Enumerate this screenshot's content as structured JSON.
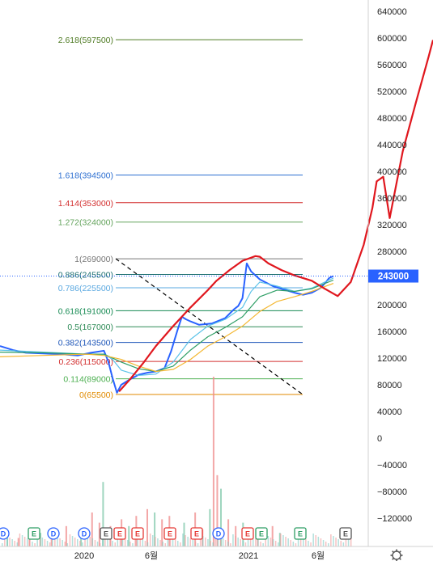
{
  "chart_data": {
    "type": "line",
    "y_axis": {
      "ticks": [
        640000,
        600000,
        560000,
        520000,
        480000,
        440000,
        400000,
        360000,
        320000,
        280000,
        240000,
        200000,
        160000,
        120000,
        80000,
        40000,
        0,
        -40000,
        -80000,
        -120000
      ],
      "labels": [
        "640000",
        "600000",
        "560000",
        "520000",
        "480000",
        "440000",
        "400000",
        "360000",
        "320000",
        "280000",
        "240000",
        "200000",
        "160000",
        "120000",
        "80000",
        "40000",
        "0",
        "−40000",
        "−80000",
        "−120000"
      ],
      "range": [
        -155000,
        685000
      ]
    },
    "x_axis": {
      "labels": [
        "2020",
        "6월",
        "2021",
        "6월"
      ]
    },
    "current_price": {
      "value": 243000,
      "label": "243000",
      "color": "#2962ff"
    },
    "fibonacci": [
      {
        "ratio": "2.618",
        "value": 597500,
        "label": "2.618(597500)",
        "color": "#4f7b24"
      },
      {
        "ratio": "1.618",
        "value": 394500,
        "label": "1.618(394500)",
        "color": "#2d6fd1"
      },
      {
        "ratio": "1.414",
        "value": 353000,
        "label": "1.414(353000)",
        "color": "#d32f2f"
      },
      {
        "ratio": "1.272",
        "value": 324000,
        "label": "1.272(324000)",
        "color": "#63a35c"
      },
      {
        "ratio": "1",
        "value": 269000,
        "label": "1(269000)",
        "color": "#777777"
      },
      {
        "ratio": "0.886",
        "value": 245500,
        "label": "0.886(245500)",
        "color": "#1b6f6f"
      },
      {
        "ratio": "0.786",
        "value": 225500,
        "label": "0.786(225500)",
        "color": "#5aa8e0"
      },
      {
        "ratio": "0.618",
        "value": 191000,
        "label": "0.618(191000)",
        "color": "#158a52"
      },
      {
        "ratio": "0.5",
        "value": 167000,
        "label": "0.5(167000)",
        "color": "#2e8b57"
      },
      {
        "ratio": "0.382",
        "value": 143500,
        "label": "0.382(143500)",
        "color": "#1e56b8"
      },
      {
        "ratio": "0.236",
        "value": 115000,
        "label": "0.236(115000)",
        "color": "#d32f2f"
      },
      {
        "ratio": "0.114",
        "value": 89000,
        "label": "0.114(89000)",
        "color": "#4caf50"
      },
      {
        "ratio": "0",
        "value": 65500,
        "label": "0(65500)",
        "color": "#e08a00"
      }
    ],
    "series": [
      {
        "color": "#2962ff",
        "x": [
          0,
          0.03,
          0.06,
          0.1,
          0.14,
          0.18,
          0.21,
          0.24,
          0.25,
          0.26,
          0.27,
          0.28,
          0.3,
          0.32,
          0.34,
          0.36,
          0.38,
          0.395,
          0.41,
          0.42,
          0.43,
          0.44,
          0.46,
          0.49,
          0.52,
          0.54,
          0.55,
          0.56,
          0.57,
          0.58,
          0.6,
          0.63,
          0.66,
          0.68,
          0.7,
          0.72,
          0.74,
          0.75,
          0.76,
          0.77
        ],
        "values": [
          138000,
          132000,
          128000,
          127000,
          126000,
          124000,
          128000,
          131000,
          115000,
          90000,
          68000,
          80000,
          88000,
          95000,
          98000,
          100000,
          105000,
          130000,
          162000,
          182000,
          178000,
          175000,
          170000,
          172000,
          180000,
          193000,
          198000,
          210000,
          262000,
          250000,
          238000,
          228000,
          222000,
          218000,
          215000,
          218000,
          225000,
          232000,
          240000,
          243000
        ]
      },
      {
        "color": "#5bc2e8",
        "x": [
          0,
          0.1,
          0.2,
          0.24,
          0.26,
          0.28,
          0.32,
          0.36,
          0.4,
          0.44,
          0.48,
          0.52,
          0.56,
          0.58,
          0.6,
          0.64,
          0.68,
          0.72,
          0.77
        ],
        "values": [
          132000,
          129000,
          126000,
          126000,
          118000,
          102000,
          94000,
          96000,
          114000,
          148000,
          168000,
          178000,
          196000,
          220000,
          234000,
          228000,
          220000,
          225000,
          240000
        ]
      },
      {
        "color": "#2e9e65",
        "x": [
          0,
          0.1,
          0.2,
          0.24,
          0.28,
          0.32,
          0.36,
          0.4,
          0.44,
          0.48,
          0.52,
          0.56,
          0.6,
          0.64,
          0.68,
          0.72,
          0.77
        ],
        "values": [
          129000,
          128000,
          126000,
          126000,
          114000,
          104000,
          100000,
          108000,
          132000,
          152000,
          166000,
          182000,
          212000,
          222000,
          220000,
          224000,
          237000
        ]
      },
      {
        "color": "#f4b731",
        "x": [
          0,
          0.1,
          0.2,
          0.24,
          0.28,
          0.32,
          0.36,
          0.4,
          0.44,
          0.48,
          0.52,
          0.56,
          0.6,
          0.64,
          0.68,
          0.72,
          0.77
        ],
        "values": [
          122000,
          124000,
          126000,
          124000,
          118000,
          108000,
          100000,
          103000,
          118000,
          138000,
          152000,
          168000,
          190000,
          205000,
          212000,
          220000,
          232000
        ]
      },
      {
        "color": "#e0171e",
        "x": [
          0.275,
          0.3,
          0.33,
          0.36,
          0.4,
          0.44,
          0.48,
          0.5,
          0.53,
          0.56,
          0.59,
          0.6,
          0.62,
          0.65,
          0.68,
          0.72,
          0.75,
          0.78,
          0.81,
          0.84,
          0.86,
          0.87,
          0.885,
          0.9,
          0.93,
          0.96,
          0.99,
          1.0
        ],
        "values": [
          70000,
          88000,
          112000,
          138000,
          168000,
          196000,
          222000,
          236000,
          252000,
          266000,
          273000,
          272000,
          262000,
          252000,
          244000,
          236000,
          224000,
          213000,
          234000,
          290000,
          345000,
          385000,
          392000,
          330000,
          430000,
          502000,
          572000,
          597000
        ]
      }
    ],
    "volume": {
      "color": "#ef8a8a",
      "x": [
        0.02,
        0.05,
        0.08,
        0.11,
        0.14,
        0.18,
        0.22,
        0.25,
        0.27,
        0.28,
        0.3,
        0.33,
        0.35,
        0.37,
        0.4,
        0.42,
        0.44,
        0.46,
        0.5,
        0.53,
        0.55,
        0.57,
        0.58,
        0.59,
        0.6,
        0.62,
        0.64,
        0.66,
        0.7,
        0.74,
        0.76
      ],
      "heights": [
        0.06,
        0.05,
        0.06,
        0.08,
        0.1,
        0.12,
        0.1,
        0.2,
        0.14,
        0.38,
        0.12,
        0.16,
        0.12,
        0.18,
        0.22,
        0.2,
        0.16,
        0.18,
        0.14,
        0.2,
        0.1,
        0.22,
        1.0,
        0.42,
        0.34,
        0.16,
        0.12,
        0.14,
        0.1,
        0.12,
        0.08
      ]
    },
    "earnings_markers": [
      {
        "letter": "D",
        "color": "#2962ff"
      },
      {
        "letter": "E",
        "color": "#2e9e65"
      },
      {
        "letter": "D",
        "color": "#2962ff"
      },
      {
        "letter": "D",
        "color": "#2962ff"
      },
      {
        "letter": "E",
        "color": "#555555"
      },
      {
        "letter": "E",
        "color": "#e53935"
      },
      {
        "letter": "E",
        "color": "#e53935"
      },
      {
        "letter": "E",
        "color": "#e53935"
      },
      {
        "letter": "E",
        "color": "#e53935"
      },
      {
        "letter": "D",
        "color": "#2962ff"
      },
      {
        "letter": "E",
        "color": "#e53935"
      },
      {
        "letter": "E",
        "color": "#2e9e65"
      },
      {
        "letter": "E",
        "color": "#2e9e65"
      },
      {
        "letter": "E",
        "color": "#555555"
      }
    ]
  },
  "footer": {
    "settings_icon": "gear-icon"
  }
}
